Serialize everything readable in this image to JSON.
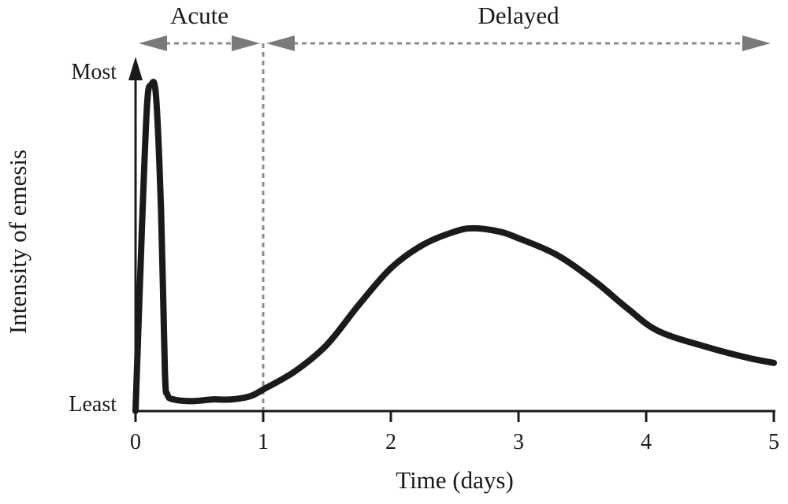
{
  "chart_data": {
    "type": "line",
    "title": "",
    "xlabel": "Time (days)",
    "ylabel": "Intensity of emesis",
    "xlim": [
      0,
      5
    ],
    "ylim": [
      0,
      1
    ],
    "x_ticks": [
      "0",
      "1",
      "2",
      "3",
      "4",
      "5"
    ],
    "y_ticks": [
      "Least",
      "Most"
    ],
    "grid": false,
    "phase_boundary_x": 1,
    "phases": [
      {
        "label": "Acute",
        "x_start": 0,
        "x_end": 1
      },
      {
        "label": "Delayed",
        "x_start": 1,
        "x_end": 5
      }
    ],
    "series": [
      {
        "color": "#1a1a1a",
        "points": [
          [
            0.0,
            0.0
          ],
          [
            0.05,
            0.55
          ],
          [
            0.09,
            0.92
          ],
          [
            0.12,
            0.98
          ],
          [
            0.16,
            0.95
          ],
          [
            0.2,
            0.6
          ],
          [
            0.23,
            0.12
          ],
          [
            0.25,
            0.05
          ],
          [
            0.3,
            0.035
          ],
          [
            0.45,
            0.03
          ],
          [
            0.6,
            0.035
          ],
          [
            0.75,
            0.035
          ],
          [
            0.9,
            0.045
          ],
          [
            1.0,
            0.065
          ],
          [
            1.25,
            0.12
          ],
          [
            1.5,
            0.2
          ],
          [
            1.75,
            0.32
          ],
          [
            2.0,
            0.43
          ],
          [
            2.25,
            0.5
          ],
          [
            2.5,
            0.54
          ],
          [
            2.65,
            0.55
          ],
          [
            2.85,
            0.54
          ],
          [
            3.0,
            0.52
          ],
          [
            3.3,
            0.47
          ],
          [
            3.6,
            0.39
          ],
          [
            3.85,
            0.31
          ],
          [
            4.1,
            0.24
          ],
          [
            4.5,
            0.19
          ],
          [
            4.8,
            0.16
          ],
          [
            5.0,
            0.145
          ]
        ]
      }
    ]
  }
}
